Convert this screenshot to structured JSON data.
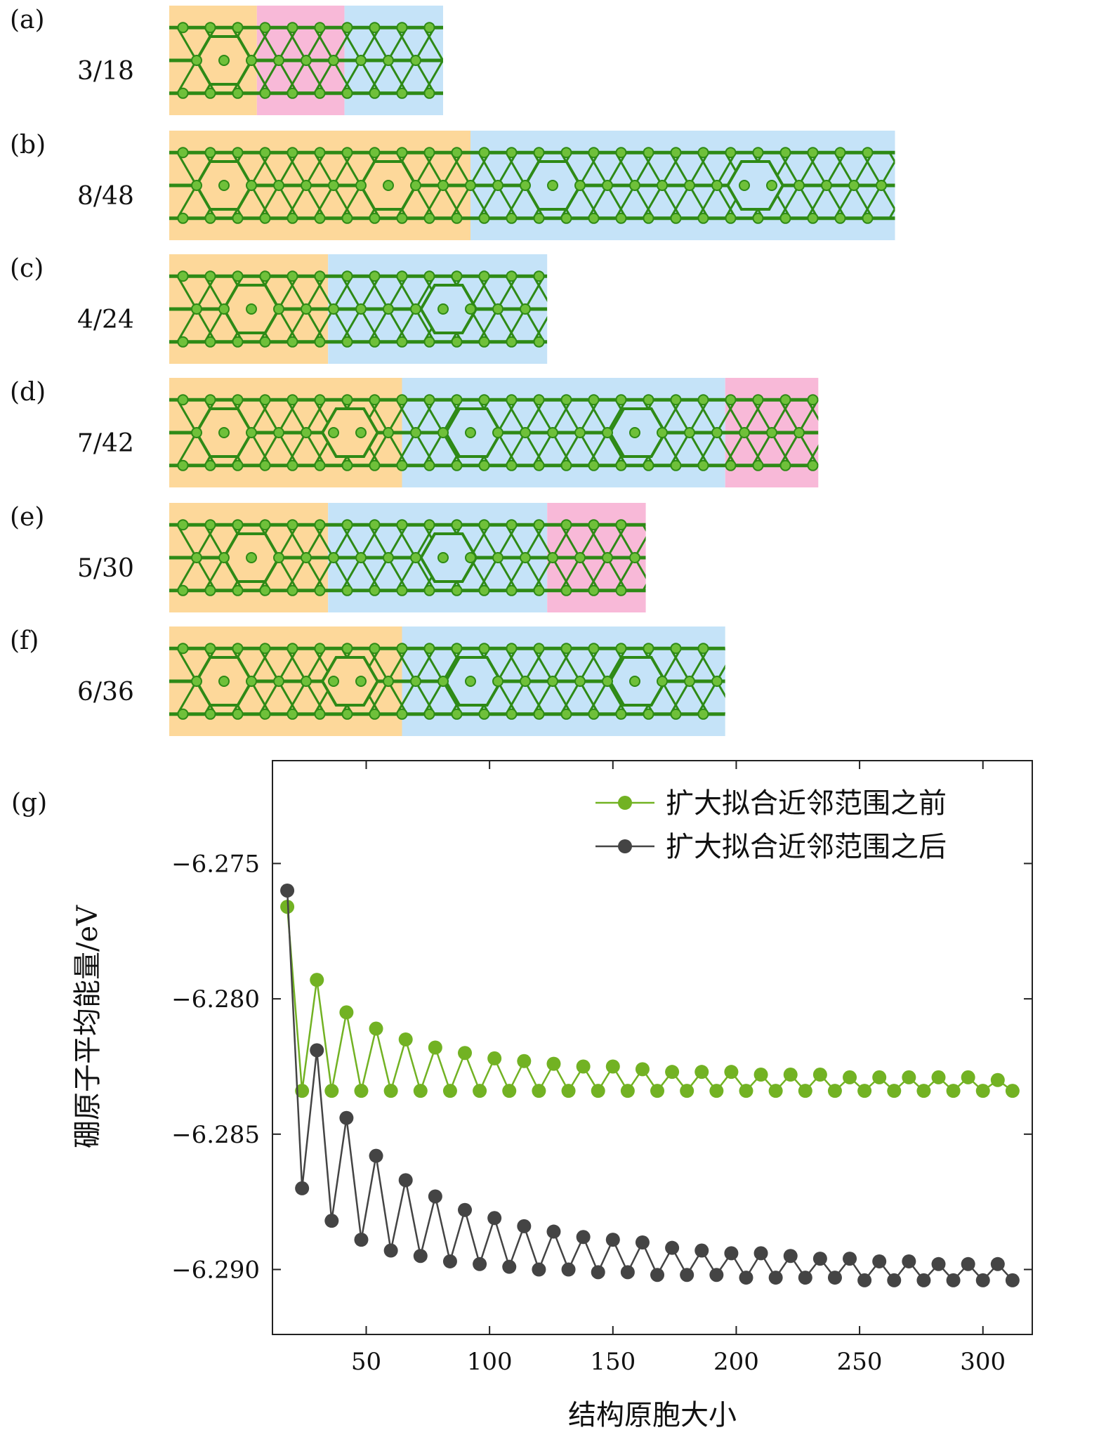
{
  "colors": {
    "orange": "#fdd89a",
    "pink": "#f8b9d8",
    "blue": "#c5e3f8",
    "bond": "#2e8a16",
    "atom": "#6fc03a",
    "green_series": "#72b223",
    "gray_series": "#444444"
  },
  "structures": [
    {
      "label": "(a)",
      "ratio": "3/18",
      "icon": "boron-sheet",
      "regions": [
        {
          "color": "orange",
          "units": 1.6,
          "hexes": [
            1
          ]
        },
        {
          "color": "pink",
          "units": 1.6,
          "hexes": []
        },
        {
          "color": "blue",
          "units": 1.8,
          "hexes": []
        }
      ]
    },
    {
      "label": "(b)",
      "ratio": "8/48",
      "icon": "boron-sheet",
      "regions": [
        {
          "color": "orange",
          "units": 5.5,
          "hexes": [
            1,
            4
          ]
        },
        {
          "color": "blue",
          "units": 7.75,
          "hexes": [
            1.5,
            5.2
          ]
        }
      ]
    },
    {
      "label": "(c)",
      "ratio": "4/24",
      "icon": "boron-sheet",
      "regions": [
        {
          "color": "orange",
          "units": 2.9,
          "hexes": [
            1.5
          ]
        },
        {
          "color": "blue",
          "units": 4.0,
          "hexes": [
            2.2
          ]
        }
      ]
    },
    {
      "label": "(d)",
      "ratio": "7/42",
      "icon": "boron-sheet",
      "regions": [
        {
          "color": "orange",
          "units": 4.25,
          "hexes": [
            1,
            3.3
          ]
        },
        {
          "color": "blue",
          "units": 5.9,
          "hexes": [
            1.3,
            4.3
          ]
        },
        {
          "color": "pink",
          "units": 1.7,
          "hexes": []
        }
      ]
    },
    {
      "label": "(e)",
      "ratio": "5/30",
      "icon": "boron-sheet",
      "regions": [
        {
          "color": "orange",
          "units": 2.9,
          "hexes": [
            1.5
          ]
        },
        {
          "color": "blue",
          "units": 4.0,
          "hexes": [
            2.2
          ]
        },
        {
          "color": "pink",
          "units": 1.8,
          "hexes": []
        }
      ]
    },
    {
      "label": "(f)",
      "ratio": "6/36",
      "icon": "boron-sheet",
      "regions": [
        {
          "color": "orange",
          "units": 4.25,
          "hexes": [
            1,
            3.3
          ]
        },
        {
          "color": "blue",
          "units": 5.9,
          "hexes": [
            1.3,
            4.3
          ]
        }
      ]
    }
  ],
  "chart_data": {
    "type": "line",
    "panel_label": "(g)",
    "xlabel": "结构原胞大小",
    "ylabel": "硼原子平均能量/eV",
    "xlim": [
      12,
      320
    ],
    "ylim": [
      -6.2924,
      -6.2712
    ],
    "xticks": [
      50,
      100,
      150,
      200,
      250,
      300
    ],
    "yticks": [
      -6.275,
      -6.28,
      -6.285,
      -6.29
    ],
    "ytick_labels": [
      "−6.275",
      "−6.280",
      "−6.285",
      "−6.290"
    ],
    "legend_position": "top-right",
    "x": [
      18,
      24,
      30,
      36,
      42,
      48,
      54,
      60,
      66,
      72,
      78,
      84,
      90,
      96,
      102,
      108,
      114,
      120,
      126,
      132,
      138,
      144,
      150,
      156,
      162,
      168,
      174,
      180,
      186,
      192,
      198,
      204,
      210,
      216,
      222,
      228,
      234,
      240,
      246,
      252,
      258,
      264,
      270,
      276,
      282,
      288,
      294,
      300,
      306,
      312
    ],
    "series": [
      {
        "name": "扩大拟合近邻范围之前",
        "color": "#72b223",
        "values": [
          -6.2766,
          -6.2834,
          -6.2793,
          -6.2834,
          -6.2805,
          -6.2834,
          -6.2811,
          -6.2834,
          -6.2815,
          -6.2834,
          -6.2818,
          -6.2834,
          -6.282,
          -6.2834,
          -6.2822,
          -6.2834,
          -6.2823,
          -6.2834,
          -6.2824,
          -6.2834,
          -6.2825,
          -6.2834,
          -6.2825,
          -6.2834,
          -6.2826,
          -6.2834,
          -6.2827,
          -6.2834,
          -6.2827,
          -6.2834,
          -6.2827,
          -6.2834,
          -6.2828,
          -6.2834,
          -6.2828,
          -6.2834,
          -6.2828,
          -6.2834,
          -6.2829,
          -6.2834,
          -6.2829,
          -6.2834,
          -6.2829,
          -6.2834,
          -6.2829,
          -6.2834,
          -6.2829,
          -6.2834,
          -6.283,
          -6.2834
        ]
      },
      {
        "name": "扩大拟合近邻范围之后",
        "color": "#444444",
        "values": [
          -6.276,
          -6.287,
          -6.2819,
          -6.2882,
          -6.2844,
          -6.2889,
          -6.2858,
          -6.2893,
          -6.2867,
          -6.2895,
          -6.2873,
          -6.2897,
          -6.2878,
          -6.2898,
          -6.2881,
          -6.2899,
          -6.2884,
          -6.29,
          -6.2886,
          -6.29,
          -6.2888,
          -6.2901,
          -6.2889,
          -6.2901,
          -6.289,
          -6.2902,
          -6.2892,
          -6.2902,
          -6.2893,
          -6.2902,
          -6.2894,
          -6.2903,
          -6.2894,
          -6.2903,
          -6.2895,
          -6.2903,
          -6.2896,
          -6.2903,
          -6.2896,
          -6.2904,
          -6.2897,
          -6.2904,
          -6.2897,
          -6.2904,
          -6.2898,
          -6.2904,
          -6.2898,
          -6.2904,
          -6.2898,
          -6.2904
        ]
      }
    ]
  }
}
